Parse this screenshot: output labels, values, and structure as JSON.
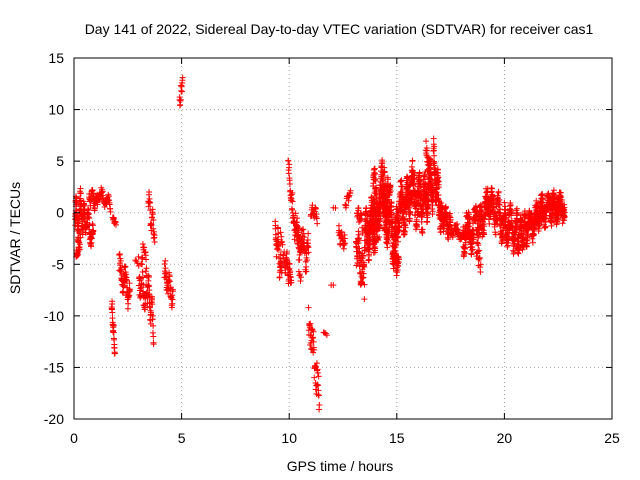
{
  "chart_data": {
    "type": "scatter",
    "title": "Day 141 of 2022, Sidereal Day-to-day VTEC variation (SDTVAR) for receiver cas1",
    "xlabel": "GPS time / hours",
    "ylabel": "SDTVAR / TECUs",
    "xlim": [
      0,
      25
    ],
    "ylim": [
      -20,
      15
    ],
    "xticks": [
      0,
      5,
      10,
      15,
      20,
      25
    ],
    "yticks": [
      -20,
      -15,
      -10,
      -5,
      0,
      5,
      10,
      15
    ],
    "xtick_labels": [
      "0",
      "5",
      "10",
      "15",
      "20",
      "25"
    ],
    "ytick_labels": [
      "-20",
      "-15",
      "-10",
      "-5",
      "0",
      "5",
      "10",
      "15"
    ],
    "grid": true,
    "marker": "+",
    "color": "#ff0000",
    "segments": [
      {
        "start": 0.05,
        "end": 0.45,
        "n": 90,
        "y0": -1.0,
        "y1": 0.5,
        "spread": 2.0,
        "wave": 1.5
      },
      {
        "start": 0.1,
        "end": 0.3,
        "n": 20,
        "y0": -4.5,
        "y1": -2.5,
        "spread": 1.0,
        "wave": 0.5
      },
      {
        "start": 0.45,
        "end": 0.9,
        "n": 60,
        "y0": 0.0,
        "y1": -2.5,
        "spread": 1.5,
        "wave": 1.0
      },
      {
        "start": 0.7,
        "end": 1.1,
        "n": 40,
        "y0": 1.5,
        "y1": 1.0,
        "spread": 1.0,
        "wave": 0.5
      },
      {
        "start": 1.1,
        "end": 1.7,
        "n": 45,
        "y0": 2.0,
        "y1": 0.8,
        "spread": 0.8,
        "wave": 0.5
      },
      {
        "start": 1.8,
        "end": 1.95,
        "n": 12,
        "y0": -0.5,
        "y1": -1.0,
        "spread": 0.5,
        "wave": 0.2
      },
      {
        "start": 1.75,
        "end": 1.9,
        "n": 25,
        "y0": -9.0,
        "y1": -13.5,
        "spread": 1.0,
        "wave": 0.5
      },
      {
        "start": 2.1,
        "end": 2.6,
        "n": 60,
        "y0": -5.5,
        "y1": -8.0,
        "spread": 1.8,
        "wave": 1.0
      },
      {
        "start": 2.85,
        "end": 2.95,
        "n": 3,
        "y0": -4.6,
        "y1": -4.8,
        "spread": 0.2,
        "wave": 0.0
      },
      {
        "start": 3.0,
        "end": 3.4,
        "n": 50,
        "y0": -6.0,
        "y1": -8.0,
        "spread": 3.0,
        "wave": 1.2
      },
      {
        "start": 3.2,
        "end": 3.35,
        "n": 12,
        "y0": -3.0,
        "y1": -4.0,
        "spread": 0.8,
        "wave": 0.3
      },
      {
        "start": 3.4,
        "end": 3.7,
        "n": 40,
        "y0": -7.0,
        "y1": -11.0,
        "spread": 2.0,
        "wave": 1.0
      },
      {
        "start": 3.45,
        "end": 3.75,
        "n": 30,
        "y0": 1.0,
        "y1": -2.0,
        "spread": 1.5,
        "wave": 0.8
      },
      {
        "start": 4.2,
        "end": 4.6,
        "n": 40,
        "y0": -6.0,
        "y1": -8.0,
        "spread": 1.5,
        "wave": 0.8
      },
      {
        "start": 4.9,
        "end": 5.05,
        "n": 14,
        "y0": 10.5,
        "y1": 12.8,
        "spread": 1.0,
        "wave": 0.4
      },
      {
        "start": 9.35,
        "end": 9.65,
        "n": 40,
        "y0": -1.5,
        "y1": -6.0,
        "spread": 2.0,
        "wave": 1.0
      },
      {
        "start": 9.6,
        "end": 9.8,
        "n": 12,
        "y0": -2.0,
        "y1": -5.0,
        "spread": 1.0,
        "wave": 0.5
      },
      {
        "start": 9.8,
        "end": 10.1,
        "n": 35,
        "y0": -4.5,
        "y1": -6.5,
        "spread": 1.5,
        "wave": 0.8
      },
      {
        "start": 9.95,
        "end": 10.25,
        "n": 30,
        "y0": 4.8,
        "y1": -1.5,
        "spread": 2.0,
        "wave": 0.6
      },
      {
        "start": 10.2,
        "end": 10.45,
        "n": 20,
        "y0": -1.0,
        "y1": -2.0,
        "spread": 1.0,
        "wave": 0.5
      },
      {
        "start": 10.3,
        "end": 10.9,
        "n": 70,
        "y0": -2.0,
        "y1": -4.0,
        "spread": 2.5,
        "wave": 1.0
      },
      {
        "start": 10.45,
        "end": 10.55,
        "n": 5,
        "y0": -6.0,
        "y1": -6.5,
        "spread": 0.5,
        "wave": 0.2
      },
      {
        "start": 10.9,
        "end": 11.4,
        "n": 50,
        "y0": -10.0,
        "y1": -18.0,
        "spread": 3.0,
        "wave": 1.0
      },
      {
        "start": 11.0,
        "end": 11.3,
        "n": 20,
        "y0": 0.5,
        "y1": -0.5,
        "spread": 1.0,
        "wave": 0.4
      },
      {
        "start": 11.6,
        "end": 11.75,
        "n": 4,
        "y0": -11.5,
        "y1": -12.0,
        "spread": 0.3,
        "wave": 0.0
      },
      {
        "start": 11.95,
        "end": 12.05,
        "n": 2,
        "y0": -7.0,
        "y1": -7.0,
        "spread": 0.2,
        "wave": 0.0
      },
      {
        "start": 12.05,
        "end": 12.15,
        "n": 2,
        "y0": 0.5,
        "y1": 0.5,
        "spread": 0.2,
        "wave": 0.0
      },
      {
        "start": 12.3,
        "end": 12.6,
        "n": 25,
        "y0": -2.0,
        "y1": -3.0,
        "spread": 1.0,
        "wave": 0.5
      },
      {
        "start": 12.6,
        "end": 12.85,
        "n": 15,
        "y0": 1.0,
        "y1": 2.0,
        "spread": 0.8,
        "wave": 0.3
      },
      {
        "start": 13.1,
        "end": 13.5,
        "n": 60,
        "y0": -3.0,
        "y1": -6.5,
        "spread": 3.0,
        "wave": 1.0
      },
      {
        "start": 13.15,
        "end": 13.4,
        "n": 20,
        "y0": 0.0,
        "y1": -1.0,
        "spread": 1.0,
        "wave": 0.5
      },
      {
        "start": 13.5,
        "end": 14.0,
        "n": 150,
        "y0": -2.5,
        "y1": -1.0,
        "spread": 3.5,
        "wave": 1.5
      },
      {
        "start": 13.9,
        "end": 14.6,
        "n": 200,
        "y0": 0.0,
        "y1": 2.0,
        "spread": 4.5,
        "wave": 2.0
      },
      {
        "start": 14.4,
        "end": 15.0,
        "n": 150,
        "y0": 1.0,
        "y1": -3.0,
        "spread": 4.0,
        "wave": 1.8
      },
      {
        "start": 14.8,
        "end": 15.1,
        "n": 40,
        "y0": -4.0,
        "y1": -5.5,
        "spread": 1.5,
        "wave": 0.5
      },
      {
        "start": 15.0,
        "end": 15.6,
        "n": 150,
        "y0": 0.0,
        "y1": 1.0,
        "spread": 3.5,
        "wave": 1.5
      },
      {
        "start": 15.6,
        "end": 16.2,
        "n": 150,
        "y0": 2.5,
        "y1": 0.5,
        "spread": 3.5,
        "wave": 1.5
      },
      {
        "start": 16.2,
        "end": 16.7,
        "n": 120,
        "y0": 1.0,
        "y1": 3.0,
        "spread": 3.0,
        "wave": 1.5
      },
      {
        "start": 16.35,
        "end": 16.6,
        "n": 30,
        "y0": 6.0,
        "y1": 3.5,
        "spread": 1.5,
        "wave": 0.5
      },
      {
        "start": 16.7,
        "end": 17.1,
        "n": 100,
        "y0": 5.0,
        "y1": -1.0,
        "spread": 3.0,
        "wave": 1.2
      },
      {
        "start": 17.1,
        "end": 17.5,
        "n": 60,
        "y0": 0.0,
        "y1": -1.5,
        "spread": 1.5,
        "wave": 0.8
      },
      {
        "start": 17.5,
        "end": 18.2,
        "n": 50,
        "y0": -1.5,
        "y1": -2.5,
        "spread": 1.0,
        "wave": 0.5
      },
      {
        "start": 18.1,
        "end": 18.8,
        "n": 120,
        "y0": -2.0,
        "y1": -1.5,
        "spread": 2.5,
        "wave": 1.2
      },
      {
        "start": 18.7,
        "end": 18.9,
        "n": 15,
        "y0": -3.5,
        "y1": -5.0,
        "spread": 1.0,
        "wave": 0.5
      },
      {
        "start": 18.8,
        "end": 19.4,
        "n": 120,
        "y0": -1.5,
        "y1": 1.5,
        "spread": 2.5,
        "wave": 1.0
      },
      {
        "start": 19.4,
        "end": 20.0,
        "n": 100,
        "y0": 0.5,
        "y1": -1.0,
        "spread": 2.5,
        "wave": 1.2
      },
      {
        "start": 20.0,
        "end": 20.6,
        "n": 120,
        "y0": -1.0,
        "y1": -2.0,
        "spread": 2.5,
        "wave": 1.2
      },
      {
        "start": 20.6,
        "end": 21.0,
        "n": 80,
        "y0": -2.5,
        "y1": -1.5,
        "spread": 2.0,
        "wave": 1.0
      },
      {
        "start": 21.0,
        "end": 21.6,
        "n": 120,
        "y0": -1.5,
        "y1": -0.5,
        "spread": 2.0,
        "wave": 1.0
      },
      {
        "start": 21.6,
        "end": 22.2,
        "n": 140,
        "y0": 0.0,
        "y1": 0.5,
        "spread": 2.0,
        "wave": 0.8
      },
      {
        "start": 22.2,
        "end": 22.8,
        "n": 160,
        "y0": 0.5,
        "y1": 0.5,
        "spread": 1.8,
        "wave": 0.8
      }
    ]
  }
}
